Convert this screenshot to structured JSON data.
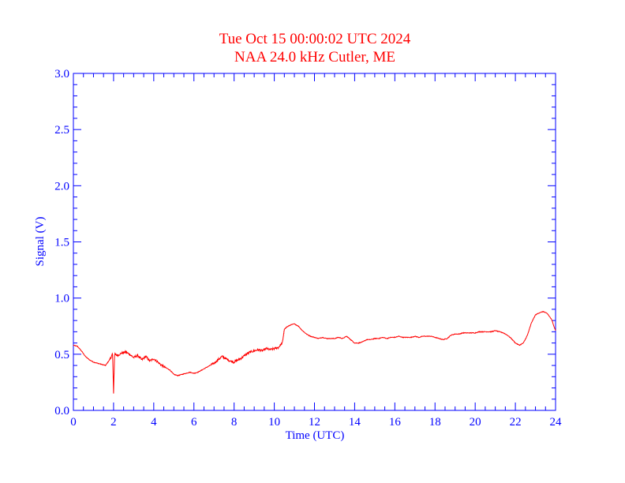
{
  "colors": {
    "axis": "#0000ff",
    "series": "#ff0000",
    "title": "#ff0000",
    "background": "#ffffff"
  },
  "chart_data": {
    "type": "line",
    "title": "Tue Oct 15 00:00:02 UTC 2024",
    "subtitle": "NAA 24.0 kHz Cutler, ME",
    "xlabel": "Time (UTC)",
    "ylabel": "Signal (V)",
    "xlim": [
      0,
      24
    ],
    "ylim": [
      0,
      3.0
    ],
    "xticks": [
      "0",
      "2",
      "4",
      "6",
      "8",
      "10",
      "12",
      "14",
      "16",
      "18",
      "20",
      "22",
      "24"
    ],
    "yticks": [
      "0.0",
      "0.5",
      "1.0",
      "1.5",
      "2.0",
      "2.5",
      "3.0"
    ],
    "grid": false,
    "legend": "none",
    "series": [
      {
        "x": [
          0.0,
          0.2,
          0.4,
          0.6,
          0.8,
          1.0,
          1.2,
          1.4,
          1.6,
          1.8,
          1.95,
          2.0,
          2.05,
          2.2,
          2.4,
          2.6,
          2.8,
          3.0,
          3.2,
          3.4,
          3.6,
          3.8,
          4.0,
          4.2,
          4.4,
          4.6,
          4.8,
          5.0,
          5.2,
          5.4,
          5.6,
          5.8,
          6.0,
          6.2,
          6.4,
          6.6,
          6.8,
          7.0,
          7.2,
          7.4,
          7.6,
          7.8,
          8.0,
          8.2,
          8.4,
          8.6,
          8.8,
          9.0,
          9.2,
          9.4,
          9.6,
          9.8,
          10.0,
          10.2,
          10.4,
          10.5,
          10.6,
          10.8,
          11.0,
          11.2,
          11.4,
          11.6,
          11.8,
          12.0,
          12.2,
          12.4,
          12.6,
          12.8,
          13.0,
          13.2,
          13.4,
          13.6,
          13.8,
          14.0,
          14.2,
          14.4,
          14.6,
          14.8,
          15.0,
          15.2,
          15.4,
          15.6,
          15.8,
          16.0,
          16.2,
          16.4,
          16.6,
          16.8,
          17.0,
          17.2,
          17.4,
          17.6,
          17.8,
          18.0,
          18.2,
          18.4,
          18.6,
          18.8,
          19.0,
          19.2,
          19.4,
          19.6,
          19.8,
          20.0,
          20.2,
          20.4,
          20.6,
          20.8,
          21.0,
          21.2,
          21.4,
          21.6,
          21.8,
          22.0,
          22.2,
          22.4,
          22.6,
          22.8,
          23.0,
          23.2,
          23.4,
          23.6,
          23.8,
          24.0
        ],
        "y": [
          0.58,
          0.57,
          0.53,
          0.48,
          0.45,
          0.43,
          0.42,
          0.41,
          0.4,
          0.45,
          0.5,
          0.15,
          0.5,
          0.49,
          0.51,
          0.52,
          0.5,
          0.47,
          0.49,
          0.45,
          0.48,
          0.44,
          0.46,
          0.43,
          0.4,
          0.38,
          0.36,
          0.32,
          0.31,
          0.32,
          0.33,
          0.34,
          0.33,
          0.34,
          0.36,
          0.38,
          0.4,
          0.42,
          0.45,
          0.48,
          0.46,
          0.44,
          0.43,
          0.45,
          0.47,
          0.5,
          0.52,
          0.53,
          0.54,
          0.53,
          0.55,
          0.54,
          0.55,
          0.56,
          0.6,
          0.72,
          0.74,
          0.76,
          0.77,
          0.75,
          0.71,
          0.68,
          0.66,
          0.65,
          0.64,
          0.65,
          0.64,
          0.64,
          0.64,
          0.65,
          0.64,
          0.66,
          0.63,
          0.6,
          0.6,
          0.61,
          0.63,
          0.63,
          0.64,
          0.64,
          0.65,
          0.64,
          0.65,
          0.65,
          0.66,
          0.65,
          0.65,
          0.65,
          0.66,
          0.65,
          0.66,
          0.66,
          0.66,
          0.65,
          0.64,
          0.63,
          0.64,
          0.67,
          0.68,
          0.68,
          0.69,
          0.69,
          0.69,
          0.69,
          0.7,
          0.7,
          0.7,
          0.7,
          0.71,
          0.7,
          0.69,
          0.67,
          0.64,
          0.6,
          0.58,
          0.6,
          0.67,
          0.78,
          0.85,
          0.87,
          0.88,
          0.86,
          0.81,
          0.71
        ]
      }
    ]
  }
}
